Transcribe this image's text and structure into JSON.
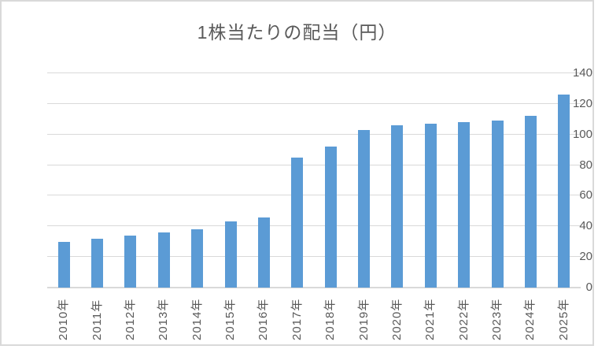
{
  "chart_data": {
    "type": "bar",
    "title": "1株当たりの配当（円）",
    "categories": [
      "2010年",
      "2011年",
      "2012年",
      "2013年",
      "2014年",
      "2015年",
      "2016年",
      "2017年",
      "2018年",
      "2019年",
      "2020年",
      "2021年",
      "2022年",
      "2023年",
      "2024年",
      "2025年"
    ],
    "values": [
      30,
      32,
      34,
      36,
      38,
      43,
      46,
      85,
      92,
      103,
      106,
      107,
      108,
      109,
      112,
      126
    ],
    "xlabel": "",
    "ylabel": "",
    "ylim": [
      0,
      140
    ],
    "ytick_step": 20,
    "ytick_labels": [
      "0",
      "20",
      "40",
      "60",
      "80",
      "100",
      "120",
      "140"
    ],
    "grid": true,
    "legend": false,
    "x_label_rotation": -90,
    "colors": {
      "bar": "#5B9BD5",
      "gridline": "#D9D9D9",
      "axis_line": "#D9D9D9",
      "axis_text": "#595959",
      "title_text": "#595959",
      "frame_border": "#D9D9D9",
      "background": "#FFFFFF"
    }
  }
}
